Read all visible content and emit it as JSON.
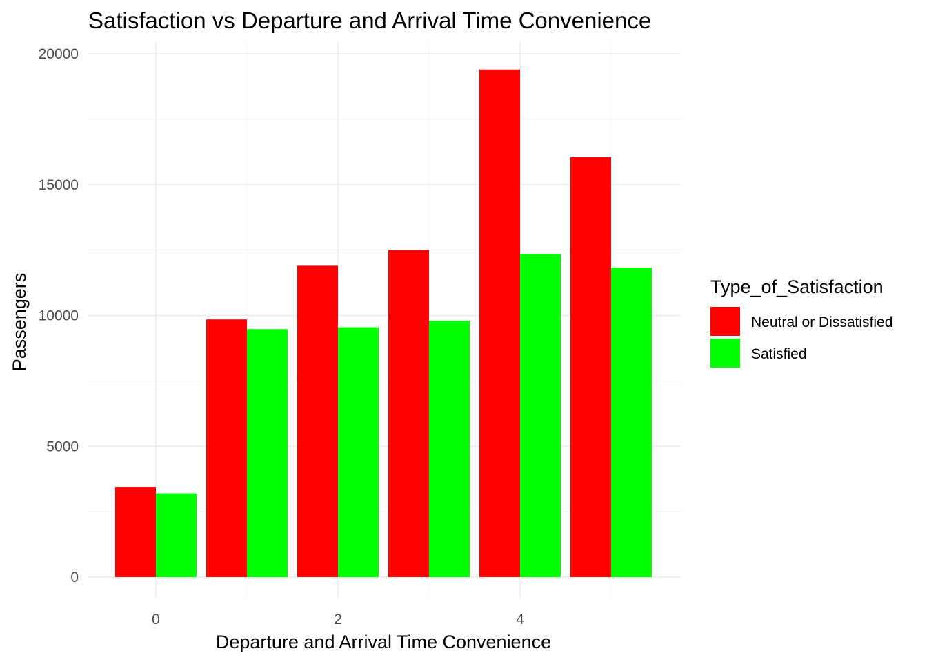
{
  "chart_data": {
    "type": "bar",
    "title": "Satisfaction vs Departure and Arrival Time Convenience",
    "xlabel": "Departure and Arrival Time Convenience",
    "ylabel": "Passengers",
    "x": [
      0,
      1,
      2,
      3,
      4,
      5
    ],
    "x_ticks": [
      "0",
      "2",
      "4"
    ],
    "y_ticks": [
      "0",
      "5000",
      "10000",
      "15000",
      "20000"
    ],
    "ylim": [
      0,
      20000
    ],
    "grid": true,
    "legend": {
      "title": "Type_of_Satisfaction",
      "position": "right"
    },
    "series": [
      {
        "name": "Neutral or Dissatisfied",
        "color": "#ff0000",
        "values": [
          3450,
          9850,
          11900,
          12500,
          19400,
          16050
        ]
      },
      {
        "name": "Satisfied",
        "color": "#00ff00",
        "values": [
          3200,
          9480,
          9550,
          9800,
          12350,
          11830
        ]
      }
    ]
  }
}
